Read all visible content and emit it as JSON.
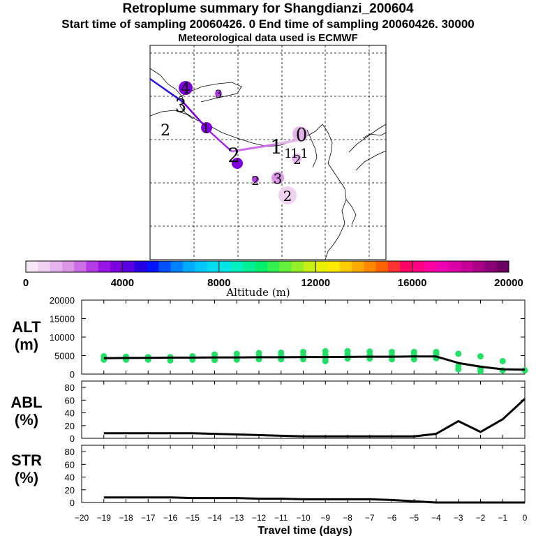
{
  "header": {
    "title": "Retroplume summary for Shangdianzi_200604",
    "subtitle": "Start time of sampling 20060426.    0     End time of sampling 20060426. 30000",
    "meteo": "Meteorological data used is ECMWF"
  },
  "colorbar": {
    "ticks": [
      "0",
      "4000",
      "8000",
      "12000",
      "16000",
      "20000"
    ],
    "label": "Altitude  (m)",
    "colors": [
      "#f7e6f7",
      "#f0d2f0",
      "#e6b4ec",
      "#dc96e6",
      "#cc6ee6",
      "#b43ce6",
      "#9a14e6",
      "#7d00dc",
      "#5a00e0",
      "#2800e6",
      "#0014ff",
      "#0050ff",
      "#0082ff",
      "#00aaff",
      "#00c8ff",
      "#00dcf0",
      "#00e6e6",
      "#00f0be",
      "#00f096",
      "#00f06e",
      "#32f050",
      "#64f03c",
      "#96f028",
      "#c8f014",
      "#ebf000",
      "#ffeb00",
      "#ffcc00",
      "#ffaa00",
      "#ff8800",
      "#ff6400",
      "#ff3232",
      "#ff0064",
      "#ff0082",
      "#ff00a0",
      "#f000b4",
      "#dc00a8",
      "#c8009a",
      "#aa0088",
      "#8c0078",
      "#6e0064"
    ]
  },
  "map_labels": {
    "particles": [
      "4",
      "3",
      "2",
      "1",
      "3",
      "2",
      "1",
      "0",
      "1",
      "1",
      "1",
      "2",
      "2",
      "3",
      "2"
    ]
  },
  "chart_data": [
    {
      "type": "line",
      "name": "ALT",
      "ylabel": "ALT\n(m)",
      "ylabel_lines": [
        "ALT",
        "(m)"
      ],
      "xlabel": "Travel time (days)",
      "x": [
        -19,
        -18,
        -17,
        -16,
        -15,
        -14,
        -13,
        -12,
        -11,
        -10,
        -9,
        -8,
        -7,
        -6,
        -5,
        -4,
        -3,
        -2,
        -1,
        0
      ],
      "values": [
        4300,
        4350,
        4400,
        4450,
        4450,
        4500,
        4500,
        4550,
        4550,
        4600,
        4600,
        4650,
        4700,
        4700,
        4750,
        4750,
        3000,
        2000,
        1300,
        1200
      ],
      "xlim": [
        -20,
        0
      ],
      "ylim": [
        0,
        20000
      ],
      "yticks": [
        0,
        5000,
        10000,
        15000,
        20000
      ],
      "ytick_labels": [
        "0",
        "5000",
        "10000",
        "15000",
        "20000"
      ],
      "scatter_color": "#22e066",
      "scatter_points": [
        [
          -19,
          4800
        ],
        [
          -19,
          3900
        ],
        [
          -18,
          4700
        ],
        [
          -18,
          3900
        ],
        [
          -17,
          4600
        ],
        [
          -17,
          3900
        ],
        [
          -16,
          4600
        ],
        [
          -16,
          3700
        ],
        [
          -15,
          4800
        ],
        [
          -15,
          3900
        ],
        [
          -14,
          5300
        ],
        [
          -14,
          4500
        ],
        [
          -14,
          3800
        ],
        [
          -13,
          5500
        ],
        [
          -13,
          4600
        ],
        [
          -13,
          3900
        ],
        [
          -12,
          5700
        ],
        [
          -12,
          4800
        ],
        [
          -12,
          4000
        ],
        [
          -11,
          5800
        ],
        [
          -11,
          4900
        ],
        [
          -11,
          4000
        ],
        [
          -10,
          6000
        ],
        [
          -10,
          5000
        ],
        [
          -10,
          4000
        ],
        [
          -9,
          6200
        ],
        [
          -9,
          5200
        ],
        [
          -9,
          4200
        ],
        [
          -9,
          3500
        ],
        [
          -8,
          6200
        ],
        [
          -8,
          5200
        ],
        [
          -8,
          4200
        ],
        [
          -7,
          6100
        ],
        [
          -7,
          5100
        ],
        [
          -7,
          4200
        ],
        [
          -6,
          6000
        ],
        [
          -6,
          5000
        ],
        [
          -6,
          4000
        ],
        [
          -5,
          6000
        ],
        [
          -5,
          5200
        ],
        [
          -5,
          4000
        ],
        [
          -4,
          6000
        ],
        [
          -4,
          5300
        ],
        [
          -4,
          4300
        ],
        [
          -3,
          5500
        ],
        [
          -3,
          2200
        ],
        [
          -3,
          1300
        ],
        [
          -2,
          4800
        ],
        [
          -2,
          1500
        ],
        [
          -2,
          800
        ],
        [
          -1,
          3500
        ],
        [
          -1,
          1000
        ],
        [
          0,
          1000
        ]
      ]
    },
    {
      "type": "line",
      "name": "ABL",
      "ylabel_lines": [
        "ABL",
        "(%)"
      ],
      "x": [
        -19,
        -18,
        -17,
        -16,
        -15,
        -14,
        -13,
        -12,
        -11,
        -10,
        -9,
        -8,
        -7,
        -6,
        -5,
        -4,
        -3,
        -2,
        -1,
        0
      ],
      "values": [
        8,
        8,
        8,
        8,
        8,
        7,
        6,
        5,
        4,
        3,
        3,
        3,
        3,
        3,
        3,
        7,
        27,
        10,
        30,
        62
      ],
      "xlim": [
        -20,
        0
      ],
      "ylim": [
        0,
        90
      ],
      "yticks": [
        0,
        20,
        40,
        60,
        80
      ],
      "ytick_labels": [
        "0",
        "20",
        "40",
        "60",
        "80"
      ]
    },
    {
      "type": "line",
      "name": "STR",
      "ylabel_lines": [
        "STR",
        "(%)"
      ],
      "x": [
        -19,
        -18,
        -17,
        -16,
        -15,
        -14,
        -13,
        -12,
        -11,
        -10,
        -9,
        -8,
        -7,
        -6,
        -5,
        -4,
        -3,
        -2,
        -1,
        0
      ],
      "values": [
        8,
        8,
        8,
        8,
        7,
        7,
        7,
        6,
        6,
        5,
        5,
        5,
        5,
        4,
        2,
        0,
        0,
        0,
        0,
        0
      ],
      "xlim": [
        -20,
        0
      ],
      "ylim": [
        0,
        90
      ],
      "yticks": [
        0,
        20,
        40,
        60,
        80
      ],
      "ytick_labels": [
        "0",
        "20",
        "40",
        "60",
        "80"
      ],
      "xticks": [
        -20,
        -19,
        -18,
        -17,
        -16,
        -15,
        -14,
        -13,
        -12,
        -11,
        -10,
        -9,
        -8,
        -7,
        -6,
        -5,
        -4,
        -3,
        -2,
        -1,
        0
      ],
      "xtick_labels": [
        "−20",
        "−19",
        "−18",
        "−17",
        "−16",
        "−15",
        "−14",
        "−13",
        "−12",
        "−11",
        "−10",
        "−9",
        "−8",
        "−7",
        "−6",
        "−5",
        "−4",
        "−3",
        "−2",
        "−1",
        "0"
      ]
    }
  ]
}
